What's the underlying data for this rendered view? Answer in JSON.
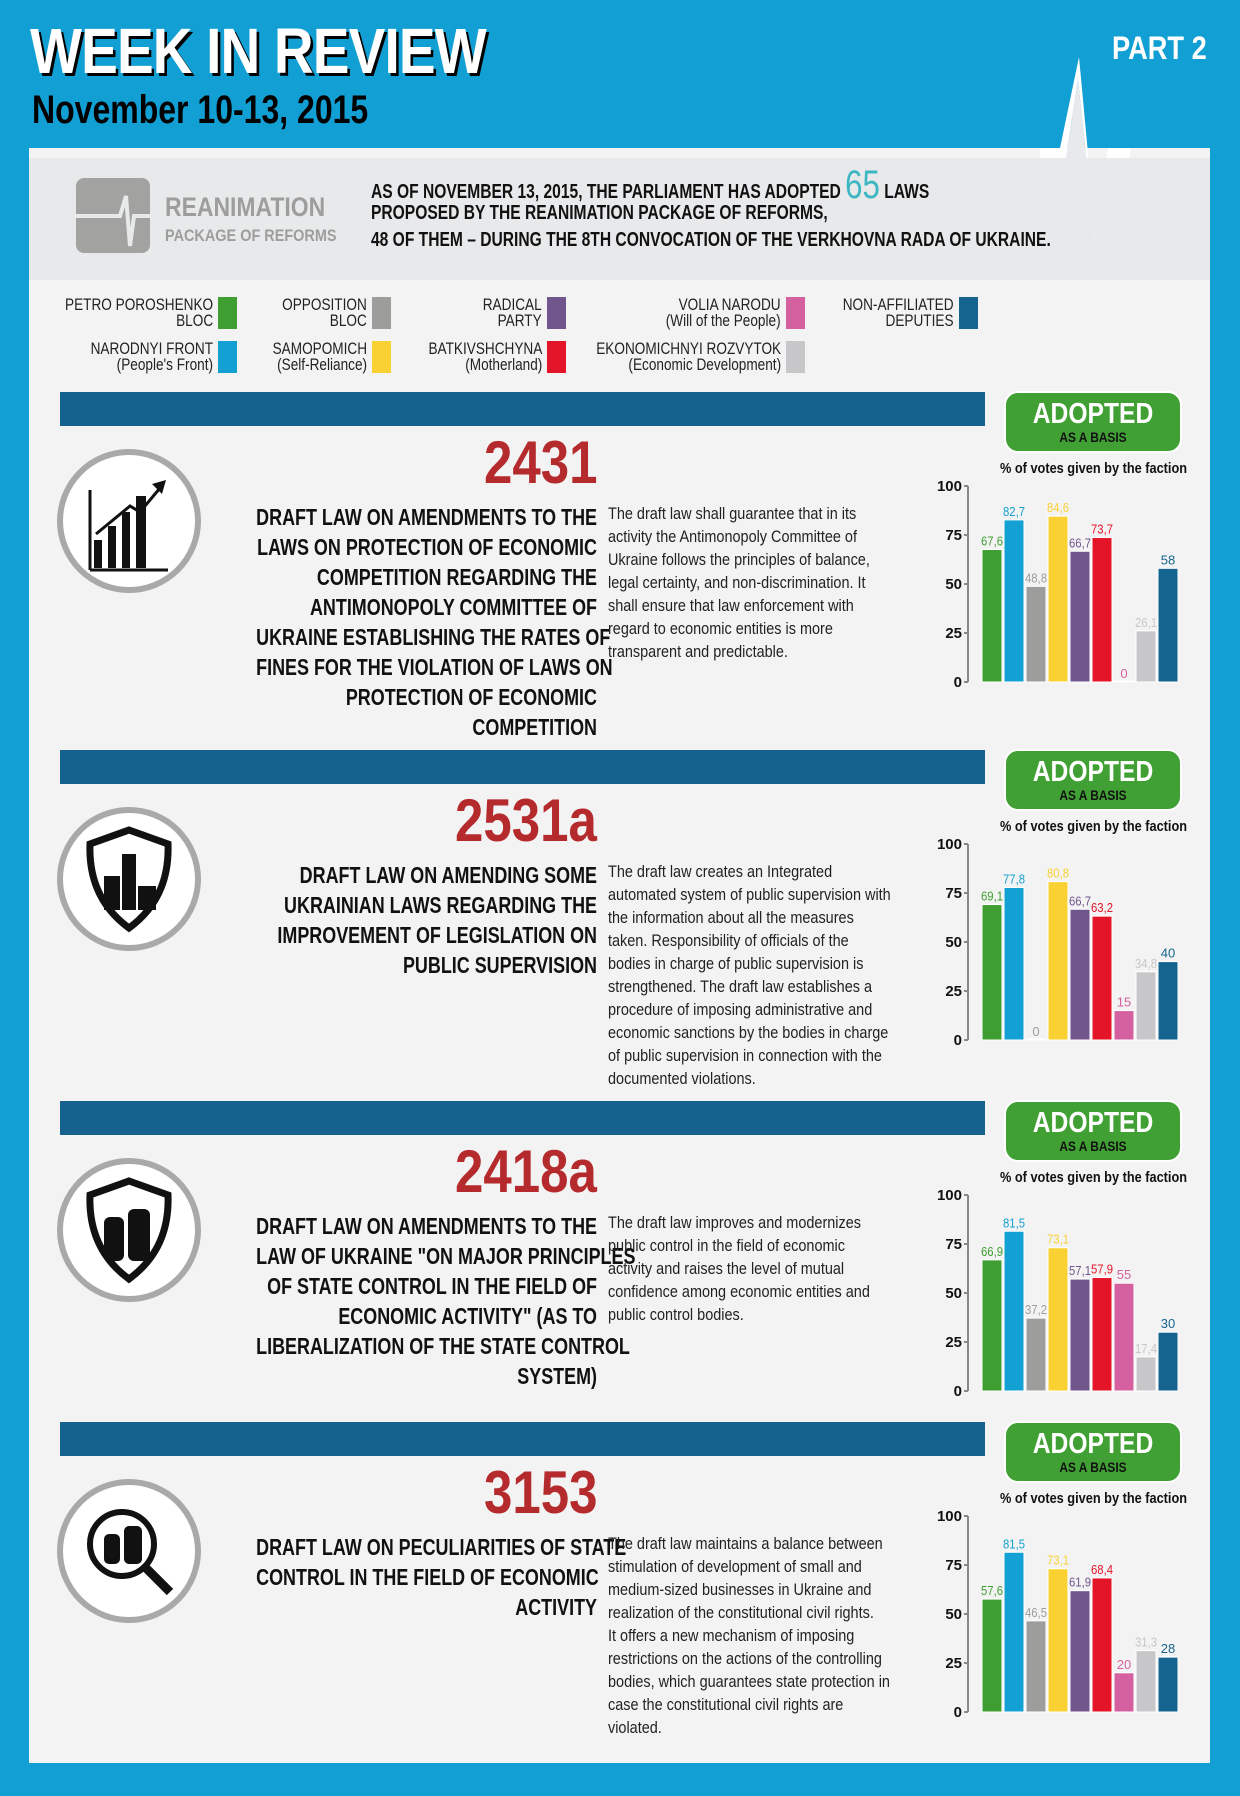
{
  "header": {
    "title": "WEEK IN REVIEW",
    "date": "November 10-13, 2015",
    "part": "PART 2"
  },
  "intro": {
    "logo_title": "REANIMATION",
    "logo_subtitle": "PACKAGE OF REFORMS",
    "line1_pre": "AS OF NOVEMBER 13, 2015, THE PARLIAMENT HAS ADOPTED",
    "count": "65",
    "line1_post": "LAWS",
    "line2": "PROPOSED BY THE REANIMATION PACKAGE OF REFORMS,",
    "line3": "48 OF THEM – DURING THE 8TH CONVOCATION OF THE VERKHOVNA RADA OF UKRAINE."
  },
  "legend": [
    {
      "l1": "PETRO POROSHENKO",
      "l2": "BLOC",
      "color": "#3f9e31"
    },
    {
      "l1": "NARODNYI FRONT",
      "l2": "(People's Front)",
      "color": "#13a0d2"
    },
    {
      "l1": "OPPOSITION",
      "l2": "BLOC",
      "color": "#9d9e9c"
    },
    {
      "l1": "SAMOPOMICH",
      "l2": "(Self-Reliance)",
      "color": "#fad133"
    },
    {
      "l1": "RADICAL",
      "l2": "PARTY",
      "color": "#71568d"
    },
    {
      "l1": "BATKIVSHCHYNA",
      "l2": "(Motherland)",
      "color": "#e41429"
    },
    {
      "l1": "VOLIA NARODU",
      "l2": "(Will of the People)",
      "color": "#d4609f"
    },
    {
      "l1": "EKONOMICHNYI ROZVYTOK",
      "l2": "(Economic Development)",
      "color": "#c7c7c9"
    },
    {
      "l1": "NON-AFFILIATED",
      "l2": "DEPUTIES",
      "color": "#15648f"
    }
  ],
  "status": {
    "adopted": "ADOPTED",
    "basis": "AS A BASIS",
    "votes_label": "% of votes given by the faction"
  },
  "laws": [
    {
      "number": "2431",
      "icon": "growth-chart-icon",
      "title": [
        "DRAFT LAW ON AMENDMENTS TO THE",
        "LAWS ON PROTECTION OF ECONOMIC",
        "COMPETITION REGARDING THE",
        "ANTIMONOPOLY COMMITTEE OF",
        "UKRAINE ESTABLISHING THE RATES OF",
        "FINES FOR THE VIOLATION OF LAWS ON",
        "PROTECTION OF ECONOMIC",
        "COMPETITION"
      ],
      "description": [
        "The draft law shall guarantee that in its",
        "activity the Antimonopoly Committee of",
        "Ukraine follows the principles of balance,",
        "legal certainty, and non-discrimination. It",
        "shall ensure that law enforcement with",
        "regard to economic entities is more",
        "transparent and predictable."
      ]
    },
    {
      "number": "2531a",
      "icon": "shield-city-icon",
      "title": [
        "DRAFT LAW ON AMENDING SOME",
        "UKRAINIAN LAWS REGARDING THE",
        "IMPROVEMENT OF LEGISLATION ON",
        "PUBLIC SUPERVISION"
      ],
      "description": [
        "The draft law creates an Integrated",
        "automated system of public supervision with",
        "the information about all the measures",
        "taken. Responsibility of officials of the",
        "bodies in charge of public supervision is",
        "strengthened. The draft law establishes a",
        "procedure of imposing administrative and",
        "economic sanctions by the bodies in charge",
        "of public supervision in connection with the",
        "documented violations."
      ]
    },
    {
      "number": "2418a",
      "icon": "shield-silo-icon",
      "title": [
        "DRAFT LAW ON AMENDMENTS TO THE",
        "LAW OF UKRAINE \"ON MAJOR PRINCIPLES",
        "OF STATE CONTROL IN THE FIELD OF",
        "ECONOMIC ACTIVITY\" (AS TO",
        "LIBERALIZATION OF THE STATE CONTROL",
        "SYSTEM)"
      ],
      "description": [
        "The draft law improves and modernizes",
        "public control in the field of economic",
        "activity and raises the level of mutual",
        "confidence among economic entities and",
        "public control bodies."
      ]
    },
    {
      "number": "3153",
      "icon": "magnifier-silo-icon",
      "title": [
        "DRAFT LAW ON PECULIARITIES OF STATE",
        "CONTROL IN THE FIELD OF ECONOMIC",
        "ACTIVITY"
      ],
      "description": [
        "The draft law maintains a balance between",
        "stimulation of development of small and",
        "medium-sized businesses in Ukraine and",
        "realization of the constitutional civil rights.",
        "It offers a new mechanism of imposing",
        "restrictions on the actions of the controlling",
        "bodies, which guarantees state protection in",
        "case the constitutional civil rights are",
        "violated."
      ]
    }
  ],
  "chart_data": [
    {
      "type": "bar",
      "title": "% of votes given by the faction",
      "ylim": [
        0,
        100
      ],
      "yticks": [
        0,
        25,
        50,
        75,
        100
      ],
      "categories": [
        "PETRO POROSHENKO BLOC",
        "NARODNYI FRONT",
        "OPPOSITION BLOC",
        "SAMOPOMICH",
        "RADICAL PARTY",
        "BATKIVSHCHYNA",
        "VOLIA NARODU",
        "EKONOMICHNYI ROZVYTOK",
        "NON-AFFILIATED DEPUTIES"
      ],
      "colors": [
        "#3f9e31",
        "#13a0d2",
        "#9d9e9c",
        "#fad133",
        "#71568d",
        "#e41429",
        "#d4609f",
        "#c7c7c9",
        "#15648f"
      ],
      "values": [
        67.6,
        82.7,
        48.8,
        84.6,
        66.7,
        73.7,
        0,
        26.1,
        58
      ],
      "labels": [
        "67,6",
        "82,7",
        "48,8",
        "84,6",
        "66,7",
        "73,7",
        "0",
        "26,1",
        "58"
      ]
    },
    {
      "type": "bar",
      "title": "% of votes given by the faction",
      "ylim": [
        0,
        100
      ],
      "yticks": [
        0,
        25,
        50,
        75,
        100
      ],
      "categories": [
        "PETRO POROSHENKO BLOC",
        "NARODNYI FRONT",
        "OPPOSITION BLOC",
        "SAMOPOMICH",
        "RADICAL PARTY",
        "BATKIVSHCHYNA",
        "VOLIA NARODU",
        "EKONOMICHNYI ROZVYTOK",
        "NON-AFFILIATED DEPUTIES"
      ],
      "colors": [
        "#3f9e31",
        "#13a0d2",
        "#9d9e9c",
        "#fad133",
        "#71568d",
        "#e41429",
        "#d4609f",
        "#c7c7c9",
        "#15648f"
      ],
      "values": [
        69.1,
        77.8,
        0,
        80.8,
        66.7,
        63.2,
        15,
        34.8,
        40
      ],
      "labels": [
        "69,1",
        "77,8",
        "0",
        "80,8",
        "66,7",
        "63,2",
        "15",
        "34,8",
        "40"
      ]
    },
    {
      "type": "bar",
      "title": "% of votes given by the faction",
      "ylim": [
        0,
        100
      ],
      "yticks": [
        0,
        25,
        50,
        75,
        100
      ],
      "categories": [
        "PETRO POROSHENKO BLOC",
        "NARODNYI FRONT",
        "OPPOSITION BLOC",
        "SAMOPOMICH",
        "RADICAL PARTY",
        "BATKIVSHCHYNA",
        "VOLIA NARODU",
        "EKONOMICHNYI ROZVYTOK",
        "NON-AFFILIATED DEPUTIES"
      ],
      "colors": [
        "#3f9e31",
        "#13a0d2",
        "#9d9e9c",
        "#fad133",
        "#71568d",
        "#e41429",
        "#d4609f",
        "#c7c7c9",
        "#15648f"
      ],
      "values": [
        66.9,
        81.5,
        37.2,
        73.1,
        57.1,
        57.9,
        55,
        17.4,
        30
      ],
      "labels": [
        "66,9",
        "81,5",
        "37,2",
        "73,1",
        "57,1",
        "57,9",
        "55",
        "17,4",
        "30"
      ]
    },
    {
      "type": "bar",
      "title": "% of votes given by the faction",
      "ylim": [
        0,
        100
      ],
      "yticks": [
        0,
        25,
        50,
        75,
        100
      ],
      "categories": [
        "PETRO POROSHENKO BLOC",
        "NARODNYI FRONT",
        "OPPOSITION BLOC",
        "SAMOPOMICH",
        "RADICAL PARTY",
        "BATKIVSHCHYNA",
        "VOLIA NARODU",
        "EKONOMICHNYI ROZVYTOK",
        "NON-AFFILIATED DEPUTIES"
      ],
      "colors": [
        "#3f9e31",
        "#13a0d2",
        "#9d9e9c",
        "#fad133",
        "#71568d",
        "#e41429",
        "#d4609f",
        "#c7c7c9",
        "#15648f"
      ],
      "values": [
        57.6,
        81.5,
        46.5,
        73.1,
        61.9,
        68.4,
        20,
        31.3,
        28
      ],
      "labels": [
        "57,6",
        "81,5",
        "46,5",
        "73,1",
        "61,9",
        "68,4",
        "20",
        "31,3",
        "28"
      ]
    }
  ]
}
